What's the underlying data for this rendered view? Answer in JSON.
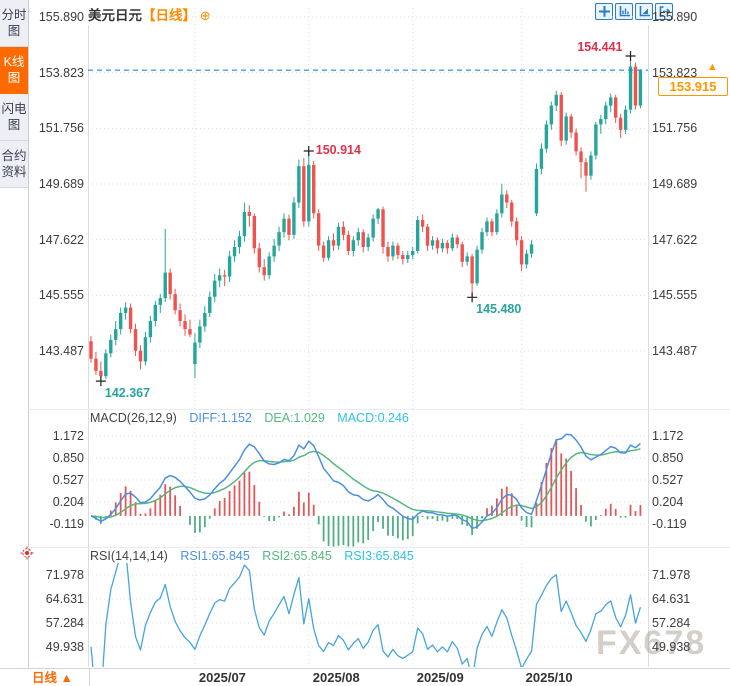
{
  "sidebar": {
    "items": [
      {
        "label": "分时图",
        "selected": false
      },
      {
        "label": "K线图",
        "selected": true
      },
      {
        "label": "闪电图",
        "selected": false
      },
      {
        "label": "合约资料",
        "selected": false
      }
    ]
  },
  "header": {
    "symbol": "美元日元",
    "period_tag": "【日线】",
    "plus_icon": "⊕",
    "toolbar_icons": [
      "crosshair-icon",
      "indicator-axis-icon",
      "trend-axis-icon",
      "exit-chart-icon"
    ]
  },
  "bottom_bar": {
    "period_label": "日线",
    "arrow": "▲"
  },
  "watermark": "FX678",
  "colors": {
    "up": "#26a69a",
    "down": "#ef5350",
    "diff_blue": "#4a90e2",
    "dea_green": "#56b87f",
    "hist_red": "#e05858",
    "hist_green": "#4fae84",
    "rsi_line": "#45a5dc",
    "price_line_blue": "#1e88e5",
    "annotation_red": "#e0314b",
    "annotation_green": "#26a69a",
    "accent_orange": "#ff6a00",
    "price_box_orange": "#ff9800",
    "grid": "#dcdce2"
  },
  "chart_data": {
    "type": "candlestick",
    "title": "美元日元【日线】",
    "price_axis_ticks": [
      "155.890",
      "153.823",
      "151.756",
      "149.689",
      "147.622",
      "145.555",
      "143.487"
    ],
    "x_axis_labels": [
      {
        "label": "2025/07",
        "candle_index": 21
      },
      {
        "label": "2025/08",
        "candle_index": 44
      },
      {
        "label": "2025/09",
        "candle_index": 65
      },
      {
        "label": "2025/10",
        "candle_index": 87
      }
    ],
    "current_price": 153.915,
    "current_price_label": "153.915",
    "annotations": [
      {
        "type": "low",
        "candle_index": 2,
        "value": 142.367,
        "label": "142.367",
        "side": "right"
      },
      {
        "type": "high",
        "candle_index": 44,
        "value": 150.914,
        "label": "150.914",
        "side": "right"
      },
      {
        "type": "low",
        "candle_index": 77,
        "value": 145.48,
        "label": "145.480",
        "side": "right"
      },
      {
        "type": "high",
        "candle_index": 109,
        "value": 154.441,
        "label": "154.441",
        "side": "left"
      }
    ],
    "candles": [
      [
        143.85,
        144.05,
        143.05,
        143.2
      ],
      [
        143.2,
        143.45,
        142.6,
        142.75
      ],
      [
        142.75,
        143.1,
        142.367,
        142.55
      ],
      [
        142.55,
        143.55,
        142.45,
        143.4
      ],
      [
        143.4,
        144.1,
        143.25,
        143.9
      ],
      [
        143.9,
        144.6,
        143.7,
        144.3
      ],
      [
        144.3,
        145.1,
        144.1,
        144.9
      ],
      [
        144.9,
        145.3,
        144.65,
        145.1
      ],
      [
        145.1,
        145.25,
        144.15,
        144.3
      ],
      [
        144.3,
        144.5,
        143.3,
        143.5
      ],
      [
        143.5,
        143.7,
        142.8,
        143.1
      ],
      [
        143.1,
        144.2,
        142.95,
        144.0
      ],
      [
        144.0,
        144.8,
        143.8,
        144.6
      ],
      [
        144.6,
        145.35,
        144.4,
        145.2
      ],
      [
        145.2,
        145.6,
        144.9,
        145.45
      ],
      [
        145.45,
        148.02,
        145.3,
        146.4
      ],
      [
        146.4,
        146.55,
        145.4,
        145.6
      ],
      [
        145.6,
        145.8,
        144.85,
        145.0
      ],
      [
        145.0,
        145.25,
        144.4,
        144.6
      ],
      [
        144.6,
        144.85,
        144.05,
        144.3
      ],
      [
        144.3,
        144.65,
        144.0,
        144.1
      ],
      [
        143.0,
        144.15,
        142.48,
        143.8
      ],
      [
        143.8,
        144.65,
        143.6,
        144.4
      ],
      [
        144.4,
        145.15,
        144.2,
        144.9
      ],
      [
        144.9,
        145.7,
        144.75,
        145.5
      ],
      [
        145.5,
        146.35,
        145.3,
        146.1
      ],
      [
        146.1,
        146.55,
        145.85,
        146.3
      ],
      [
        146.3,
        146.5,
        145.9,
        146.25
      ],
      [
        146.25,
        147.2,
        146.05,
        147.0
      ],
      [
        147.0,
        147.6,
        146.8,
        147.35
      ],
      [
        147.35,
        147.95,
        147.1,
        147.75
      ],
      [
        147.75,
        149.0,
        147.55,
        148.65
      ],
      [
        148.65,
        148.9,
        148.1,
        148.5
      ],
      [
        148.5,
        148.6,
        147.1,
        147.3
      ],
      [
        147.3,
        147.5,
        146.4,
        146.6
      ],
      [
        146.6,
        146.9,
        146.1,
        146.3
      ],
      [
        146.3,
        147.15,
        146.15,
        147.0
      ],
      [
        147.0,
        147.65,
        146.8,
        147.4
      ],
      [
        147.4,
        148.1,
        147.2,
        147.9
      ],
      [
        147.9,
        148.6,
        147.7,
        148.4
      ],
      [
        148.4,
        148.55,
        147.6,
        147.8
      ],
      [
        147.8,
        149.2,
        147.65,
        149.0
      ],
      [
        149.0,
        150.6,
        148.8,
        150.35
      ],
      [
        150.35,
        150.65,
        148.1,
        148.3
      ],
      [
        148.3,
        150.914,
        148.1,
        150.4
      ],
      [
        150.4,
        150.55,
        148.4,
        148.6
      ],
      [
        148.6,
        148.75,
        147.2,
        147.4
      ],
      [
        147.4,
        147.55,
        146.8,
        146.95
      ],
      [
        146.95,
        147.75,
        146.85,
        147.6
      ],
      [
        147.6,
        147.85,
        147.2,
        147.4
      ],
      [
        147.4,
        148.25,
        147.25,
        148.1
      ],
      [
        148.1,
        148.3,
        147.6,
        147.8
      ],
      [
        147.8,
        147.95,
        147.05,
        147.2
      ],
      [
        147.2,
        147.75,
        147.0,
        147.6
      ],
      [
        147.6,
        148.05,
        147.4,
        147.9
      ],
      [
        147.9,
        148.0,
        147.15,
        147.35
      ],
      [
        147.35,
        147.85,
        147.2,
        147.7
      ],
      [
        147.7,
        148.55,
        147.55,
        148.4
      ],
      [
        148.4,
        148.8,
        148.2,
        148.75
      ],
      [
        148.75,
        148.85,
        147.1,
        147.35
      ],
      [
        147.35,
        147.55,
        146.8,
        147.0
      ],
      [
        147.0,
        147.55,
        146.85,
        147.4
      ],
      [
        147.4,
        147.5,
        146.9,
        147.05
      ],
      [
        147.05,
        147.2,
        146.7,
        146.9
      ],
      [
        146.9,
        147.2,
        146.75,
        147.05
      ],
      [
        147.05,
        147.35,
        146.9,
        147.2
      ],
      [
        147.2,
        148.5,
        147.1,
        148.35
      ],
      [
        148.35,
        148.55,
        147.9,
        148.1
      ],
      [
        148.1,
        148.2,
        147.2,
        147.4
      ],
      [
        147.4,
        147.75,
        147.25,
        147.6
      ],
      [
        147.6,
        147.7,
        147.1,
        147.3
      ],
      [
        147.3,
        147.65,
        147.15,
        147.5
      ],
      [
        147.5,
        147.6,
        147.1,
        147.3
      ],
      [
        147.3,
        147.85,
        147.2,
        147.7
      ],
      [
        147.7,
        147.8,
        147.3,
        147.45
      ],
      [
        147.45,
        147.55,
        146.6,
        146.8
      ],
      [
        146.8,
        147.15,
        146.65,
        147.0
      ],
      [
        147.0,
        147.1,
        145.48,
        146.0
      ],
      [
        146.0,
        147.4,
        145.9,
        147.25
      ],
      [
        147.25,
        148.05,
        147.1,
        147.9
      ],
      [
        147.9,
        148.45,
        147.75,
        148.3
      ],
      [
        148.3,
        148.4,
        147.75,
        147.9
      ],
      [
        147.9,
        148.75,
        147.8,
        148.6
      ],
      [
        148.6,
        149.7,
        148.45,
        149.3
      ],
      [
        149.3,
        149.45,
        148.8,
        149.0
      ],
      [
        149.0,
        149.1,
        148.1,
        148.3
      ],
      [
        148.3,
        148.45,
        147.4,
        147.6
      ],
      [
        147.6,
        147.75,
        146.45,
        146.7
      ],
      [
        146.7,
        147.25,
        146.55,
        147.1
      ],
      [
        147.1,
        147.6,
        146.95,
        147.45
      ],
      [
        148.6,
        150.45,
        148.5,
        150.25
      ],
      [
        150.25,
        151.2,
        150.05,
        151.0
      ],
      [
        151.0,
        152.05,
        150.85,
        151.9
      ],
      [
        151.9,
        152.75,
        151.7,
        152.6
      ],
      [
        152.6,
        153.15,
        152.4,
        153.0
      ],
      [
        153.0,
        153.1,
        151.1,
        151.3
      ],
      [
        151.3,
        152.35,
        151.15,
        152.2
      ],
      [
        152.2,
        152.3,
        151.4,
        151.6
      ],
      [
        151.6,
        151.75,
        150.75,
        150.9
      ],
      [
        150.9,
        151.05,
        149.9,
        150.5
      ],
      [
        150.5,
        150.65,
        149.4,
        150.0
      ],
      [
        150.0,
        150.9,
        149.85,
        150.75
      ],
      [
        150.75,
        152.0,
        150.6,
        151.9
      ],
      [
        151.9,
        152.25,
        151.55,
        152.1
      ],
      [
        152.1,
        152.75,
        151.9,
        152.6
      ],
      [
        152.6,
        153.05,
        152.35,
        152.9
      ],
      [
        152.9,
        153.0,
        151.95,
        152.15
      ],
      [
        152.15,
        152.3,
        151.4,
        151.7
      ],
      [
        151.7,
        152.6,
        151.55,
        152.45
      ],
      [
        152.45,
        154.441,
        152.3,
        154.05
      ],
      [
        154.05,
        154.2,
        152.45,
        152.6
      ],
      [
        152.6,
        153.95,
        152.5,
        153.915
      ]
    ],
    "macd": {
      "title": "MACD(26,12,9)",
      "diff": "DIFF:1.152",
      "dea": "DEA:1.029",
      "macd": "MACD:0.246",
      "ticks": [
        "1.172",
        "0.850",
        "0.527",
        "0.204",
        "-0.119"
      ]
    },
    "rsi": {
      "title": "RSI(14,14,14)",
      "rsi1": "RSI1:65.845",
      "rsi2": "RSI2:65.845",
      "rsi3": "RSI3:65.845",
      "ticks": [
        "71.978",
        "64.631",
        "57.284",
        "49.938"
      ]
    }
  }
}
